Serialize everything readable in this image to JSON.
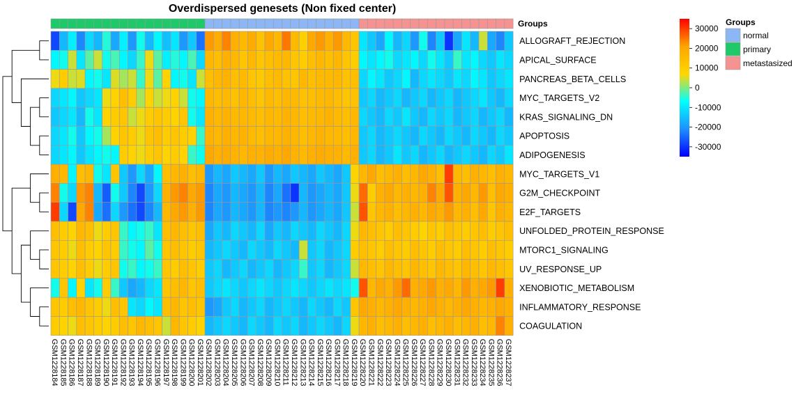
{
  "chart_data": {
    "type": "heatmap",
    "title": "Overdispersed genesets (Non fixed center)",
    "annotation_label": "Groups",
    "rows": [
      "ALLOGRAFT_REJECTION",
      "APICAL_SURFACE",
      "PANCREAS_BETA_CELLS",
      "MYC_TARGETS_V2",
      "KRAS_SIGNALING_DN",
      "APOPTOSIS",
      "ADIPOGENESIS",
      "MYC_TARGETS_V1",
      "G2M_CHECKPOINT",
      "E2F_TARGETS",
      "UNFOLDED_PROTEIN_RESPONSE",
      "MTORC1_SIGNALING",
      "UV_RESPONSE_UP",
      "XENOBIOTIC_METABOLISM",
      "INFLAMMATORY_RESPONSE",
      "COAGULATION"
    ],
    "columns": [
      "GSM1228184",
      "GSM1228185",
      "GSM1228186",
      "GSM1228187",
      "GSM1228188",
      "GSM1228189",
      "GSM1228190",
      "GSM1228191",
      "GSM1228192",
      "GSM1228193",
      "GSM1228194",
      "GSM1228195",
      "GSM1228196",
      "GSM1228197",
      "GSM1228198",
      "GSM1228199",
      "GSM1228200",
      "GSM1228201",
      "GSM1228202",
      "GSM1228203",
      "GSM1228204",
      "GSM1228205",
      "GSM1228206",
      "GSM1228207",
      "GSM1228208",
      "GSM1228209",
      "GSM1228210",
      "GSM1228211",
      "GSM1228212",
      "GSM1228213",
      "GSM1228214",
      "GSM1228215",
      "GSM1228216",
      "GSM1228217",
      "GSM1228218",
      "GSM1228219",
      "GSM1228220",
      "GSM1228221",
      "GSM1228222",
      "GSM1228223",
      "GSM1228224",
      "GSM1228225",
      "GSM1228226",
      "GSM1228227",
      "GSM1228228",
      "GSM1228229",
      "GSM1228230",
      "GSM1228231",
      "GSM1228232",
      "GSM1228233",
      "GSM1228234",
      "GSM1228235",
      "GSM1228236",
      "GSM1228237"
    ],
    "column_groups": [
      "primary",
      "primary",
      "primary",
      "primary",
      "primary",
      "primary",
      "primary",
      "primary",
      "primary",
      "primary",
      "primary",
      "primary",
      "primary",
      "primary",
      "primary",
      "primary",
      "primary",
      "primary",
      "normal",
      "normal",
      "normal",
      "normal",
      "normal",
      "normal",
      "normal",
      "normal",
      "normal",
      "normal",
      "normal",
      "normal",
      "normal",
      "normal",
      "normal",
      "normal",
      "normal",
      "normal",
      "metastasized",
      "metastasized",
      "metastasized",
      "metastasized",
      "metastasized",
      "metastasized",
      "metastasized",
      "metastasized",
      "metastasized",
      "metastasized",
      "metastasized",
      "metastasized",
      "metastasized",
      "metastasized",
      "metastasized",
      "metastasized",
      "metastasized",
      "metastasized"
    ],
    "values": [
      [
        -28000,
        -16000,
        -9000,
        -22000,
        -12000,
        -16000,
        -5000,
        -18000,
        -9000,
        -20000,
        -6000,
        -16000,
        -8000,
        -15000,
        -10000,
        -20000,
        -14000,
        -24000,
        22000,
        19000,
        24000,
        18000,
        15000,
        19000,
        13000,
        20000,
        16000,
        25000,
        15000,
        9000,
        20000,
        22000,
        18000,
        22000,
        16000,
        12000,
        -10000,
        -14000,
        -18000,
        -8000,
        -16000,
        -12000,
        -20000,
        -6000,
        -22000,
        -14000,
        -30000,
        -18000,
        -10000,
        -16000,
        4000,
        -18000,
        -22000,
        -14000
      ],
      [
        -8000,
        -6000,
        4000,
        -10000,
        -2000,
        4000,
        -6000,
        -3000,
        -8000,
        -12000,
        -4000,
        6000,
        -2000,
        -9000,
        -5000,
        -8000,
        -3000,
        -12000,
        16000,
        14000,
        18000,
        16000,
        12000,
        16000,
        12000,
        14000,
        15000,
        16000,
        12000,
        10000,
        14000,
        16000,
        14000,
        16000,
        12000,
        10000,
        -8000,
        -10000,
        -8000,
        -6000,
        -12000,
        -10000,
        -8000,
        -12000,
        -6000,
        -10000,
        -14000,
        -4000,
        -10000,
        -8000,
        -12000,
        -14000,
        -10000,
        -12000
      ],
      [
        6000,
        10000,
        4000,
        5000,
        -8000,
        -6000,
        -10000,
        5000,
        2000,
        4000,
        -4000,
        6000,
        -2000,
        8000,
        -8000,
        -6000,
        -10000,
        4000,
        14000,
        16000,
        17000,
        14000,
        15000,
        12000,
        11000,
        14000,
        15000,
        13000,
        12000,
        16000,
        14000,
        15000,
        15000,
        16000,
        13000,
        14000,
        -12000,
        -8000,
        -10000,
        -14000,
        -12000,
        -8000,
        -16000,
        -12000,
        -10000,
        -12000,
        -14000,
        -10000,
        -12000,
        -8000,
        -10000,
        -14000,
        -12000,
        -10000
      ],
      [
        -12000,
        -10000,
        -8000,
        -14000,
        -12000,
        -10000,
        6000,
        8000,
        14000,
        10000,
        2000,
        8000,
        4000,
        6000,
        8000,
        4000,
        -6000,
        -8000,
        16000,
        14000,
        15000,
        13000,
        16000,
        14000,
        12000,
        15000,
        14000,
        16000,
        15000,
        13000,
        14000,
        15000,
        16000,
        14000,
        12000,
        13000,
        -14000,
        -12000,
        -16000,
        -14000,
        -12000,
        -16000,
        -14000,
        -12000,
        -16000,
        -14000,
        -12000,
        -16000,
        -14000,
        -12000,
        -10000,
        -14000,
        -16000,
        -12000
      ],
      [
        -14000,
        -12000,
        -10000,
        -16000,
        -6000,
        -10000,
        8000,
        10000,
        12000,
        4000,
        6000,
        10000,
        12000,
        10000,
        8000,
        12000,
        -6000,
        -10000,
        18000,
        16000,
        17000,
        15000,
        16000,
        15000,
        14000,
        16000,
        15000,
        17000,
        16000,
        14000,
        15000,
        16000,
        17000,
        15000,
        14000,
        16000,
        -12000,
        -14000,
        -16000,
        -12000,
        -14000,
        -10000,
        -14000,
        -16000,
        -12000,
        -14000,
        -12000,
        -16000,
        -14000,
        -12000,
        -16000,
        -14000,
        -12000,
        -16000
      ],
      [
        -12000,
        -10000,
        -6000,
        -14000,
        -8000,
        -6000,
        2000,
        8000,
        12000,
        10000,
        6000,
        12000,
        14000,
        10000,
        12000,
        10000,
        8000,
        -4000,
        17000,
        16000,
        18000,
        16000,
        17000,
        15000,
        14000,
        16000,
        16000,
        17000,
        16000,
        14000,
        16000,
        17000,
        16000,
        15000,
        14000,
        16000,
        -14000,
        -12000,
        -16000,
        -14000,
        -12000,
        -14000,
        -16000,
        -12000,
        -14000,
        -16000,
        -12000,
        -14000,
        -16000,
        -12000,
        -14000,
        -16000,
        -12000,
        -14000
      ],
      [
        -12000,
        -10000,
        -8000,
        -14000,
        -10000,
        -8000,
        -6000,
        -8000,
        10000,
        8000,
        6000,
        10000,
        12000,
        8000,
        10000,
        8000,
        -4000,
        -6000,
        20000,
        18000,
        19000,
        17000,
        16000,
        18000,
        17000,
        19000,
        18000,
        20000,
        17000,
        15000,
        18000,
        19000,
        18000,
        17000,
        15000,
        18000,
        -14000,
        -12000,
        -16000,
        -14000,
        -10000,
        -14000,
        -12000,
        -16000,
        -14000,
        -12000,
        -16000,
        -14000,
        -12000,
        -14000,
        -16000,
        -12000,
        -14000,
        -10000
      ],
      [
        18000,
        16000,
        -8000,
        14000,
        16000,
        -6000,
        -10000,
        12000,
        -14000,
        -20000,
        -12000,
        -18000,
        -8000,
        14000,
        16000,
        18000,
        14000,
        16000,
        -20000,
        -16000,
        -18000,
        -14000,
        -16000,
        -18000,
        -14000,
        -20000,
        -16000,
        -18000,
        -14000,
        -16000,
        -18000,
        -14000,
        -16000,
        -18000,
        -14000,
        8000,
        16000,
        20000,
        14000,
        16000,
        18000,
        14000,
        16000,
        20000,
        18000,
        14000,
        30000,
        16000,
        14000,
        18000,
        16000,
        14000,
        18000,
        16000
      ],
      [
        24000,
        -6000,
        -12000,
        22000,
        24000,
        -16000,
        -26000,
        -6000,
        -14000,
        -22000,
        -28000,
        -20000,
        -12000,
        18000,
        22000,
        24000,
        20000,
        22000,
        -22000,
        -18000,
        -20000,
        -16000,
        -18000,
        -20000,
        -16000,
        -22000,
        -18000,
        -24000,
        -30000,
        -16000,
        -20000,
        -18000,
        -16000,
        -18000,
        -14000,
        6000,
        26000,
        10000,
        18000,
        20000,
        16000,
        18000,
        16000,
        18000,
        24000,
        20000,
        28000,
        18000,
        20000,
        16000,
        22000,
        14000,
        20000,
        18000
      ],
      [
        30000,
        -12000,
        -28000,
        20000,
        24000,
        -18000,
        -24000,
        -12000,
        -20000,
        -24000,
        -28000,
        -22000,
        -16000,
        16000,
        20000,
        22000,
        18000,
        22000,
        -22000,
        -18000,
        -20000,
        -16000,
        -18000,
        -20000,
        -16000,
        -22000,
        -20000,
        -22000,
        -20000,
        -16000,
        -20000,
        -18000,
        -16000,
        -18000,
        -14000,
        4000,
        28000,
        12000,
        16000,
        18000,
        14000,
        16000,
        18000,
        16000,
        20000,
        18000,
        22000,
        16000,
        18000,
        14000,
        20000,
        12000,
        18000,
        16000
      ],
      [
        14000,
        10000,
        8000,
        16000,
        14000,
        6000,
        10000,
        12000,
        -4000,
        -8000,
        -6000,
        -4000,
        -10000,
        14000,
        16000,
        14000,
        12000,
        14000,
        -18000,
        -14000,
        -16000,
        -12000,
        -14000,
        -16000,
        -12000,
        -18000,
        -14000,
        -16000,
        -12000,
        -14000,
        -16000,
        -12000,
        -14000,
        -16000,
        -12000,
        6000,
        16000,
        14000,
        12000,
        10000,
        14000,
        12000,
        10000,
        8000,
        12000,
        10000,
        14000,
        12000,
        10000,
        12000,
        14000,
        10000,
        12000,
        14000
      ],
      [
        12000,
        10000,
        6000,
        14000,
        10000,
        8000,
        12000,
        10000,
        -4000,
        -6000,
        -8000,
        -2000,
        -6000,
        12000,
        14000,
        12000,
        10000,
        12000,
        -16000,
        -14000,
        -12000,
        -14000,
        -16000,
        -12000,
        -14000,
        -16000,
        -12000,
        -14000,
        -16000,
        4000,
        -14000,
        -12000,
        -16000,
        -14000,
        -12000,
        10000,
        14000,
        12000,
        10000,
        14000,
        12000,
        10000,
        14000,
        12000,
        10000,
        14000,
        12000,
        10000,
        14000,
        12000,
        10000,
        14000,
        12000,
        10000
      ],
      [
        12000,
        10000,
        8000,
        14000,
        10000,
        6000,
        10000,
        12000,
        -6000,
        -4000,
        -8000,
        -6000,
        -4000,
        12000,
        10000,
        14000,
        12000,
        10000,
        -14000,
        -12000,
        -16000,
        -14000,
        -12000,
        -16000,
        -14000,
        -12000,
        -16000,
        -14000,
        -12000,
        -4000,
        -14000,
        -12000,
        -16000,
        -14000,
        -12000,
        4000,
        16000,
        14000,
        12000,
        16000,
        14000,
        12000,
        16000,
        14000,
        12000,
        16000,
        14000,
        12000,
        16000,
        14000,
        12000,
        16000,
        14000,
        12000
      ],
      [
        -6000,
        12000,
        -8000,
        8000,
        -10000,
        -6000,
        10000,
        -4000,
        -14000,
        -18000,
        -16000,
        -12000,
        -10000,
        12000,
        14000,
        16000,
        12000,
        14000,
        -14000,
        -12000,
        -10000,
        -12000,
        -14000,
        -12000,
        -10000,
        -12000,
        -14000,
        -12000,
        -10000,
        -12000,
        -14000,
        -12000,
        -10000,
        -12000,
        -10000,
        -6000,
        28000,
        16000,
        20000,
        18000,
        22000,
        26000,
        18000,
        20000,
        22000,
        18000,
        20000,
        16000,
        22000,
        18000,
        20000,
        22000,
        30000,
        18000
      ],
      [
        12000,
        10000,
        14000,
        16000,
        12000,
        10000,
        6000,
        14000,
        12000,
        -10000,
        -12000,
        -8000,
        -10000,
        14000,
        16000,
        12000,
        14000,
        12000,
        -20000,
        -18000,
        -14000,
        -12000,
        -16000,
        -14000,
        -12000,
        -16000,
        -14000,
        -12000,
        -14000,
        -16000,
        -12000,
        -14000,
        -16000,
        -12000,
        -14000,
        12000,
        20000,
        18000,
        16000,
        18000,
        20000,
        18000,
        16000,
        18000,
        20000,
        18000,
        16000,
        18000,
        20000,
        18000,
        16000,
        18000,
        20000,
        18000
      ],
      [
        10000,
        8000,
        6000,
        14000,
        12000,
        10000,
        8000,
        10000,
        14000,
        12000,
        16000,
        14000,
        12000,
        4000,
        16000,
        12000,
        10000,
        8000,
        -16000,
        -14000,
        -12000,
        -14000,
        -16000,
        -12000,
        -14000,
        -16000,
        -12000,
        -14000,
        -12000,
        -16000,
        -14000,
        -12000,
        -14000,
        -16000,
        -12000,
        6000,
        16000,
        18000,
        14000,
        16000,
        18000,
        14000,
        16000,
        18000,
        14000,
        16000,
        18000,
        14000,
        16000,
        18000,
        14000,
        16000,
        24000,
        18000
      ]
    ],
    "color_scale": {
      "ticks": [
        30000,
        20000,
        10000,
        0,
        -10000,
        -20000,
        -30000
      ],
      "tick_labels": [
        "30000",
        "20000",
        "10000",
        "0",
        "-10000",
        "-20000",
        "-30000"
      ],
      "min": -35000,
      "max": 35000,
      "stops": [
        "#0000ff",
        "#1e90ff",
        "#00ffff",
        "#ffd700",
        "#ffa500",
        "#ff0000"
      ]
    },
    "legend": {
      "title": "Groups",
      "entries": [
        {
          "name": "normal",
          "color": "#8db6f5"
        },
        {
          "name": "primary",
          "color": "#1ec96a"
        },
        {
          "name": "metastasized",
          "color": "#f59393"
        }
      ]
    },
    "row_dendrogram": [
      {
        "a": 0,
        "b": 1
      },
      {
        "a": 3,
        "b": 4
      },
      {
        "a": 5,
        "b": 6
      },
      {
        "a": "n2",
        "b": "n3"
      },
      {
        "a": 2,
        "b": "n4"
      },
      {
        "a": "n1",
        "b": "n5"
      },
      {
        "a": 8,
        "b": 9
      },
      {
        "a": 7,
        "b": "n7"
      },
      {
        "a": 11,
        "b": 12
      },
      {
        "a": 10,
        "b": "n9"
      },
      {
        "a": 14,
        "b": 15
      },
      {
        "a": 13,
        "b": "n11"
      },
      {
        "a": "n10",
        "b": "n12"
      },
      {
        "a": "n8",
        "b": "n13"
      },
      {
        "a": "n6",
        "b": "n14"
      }
    ]
  }
}
